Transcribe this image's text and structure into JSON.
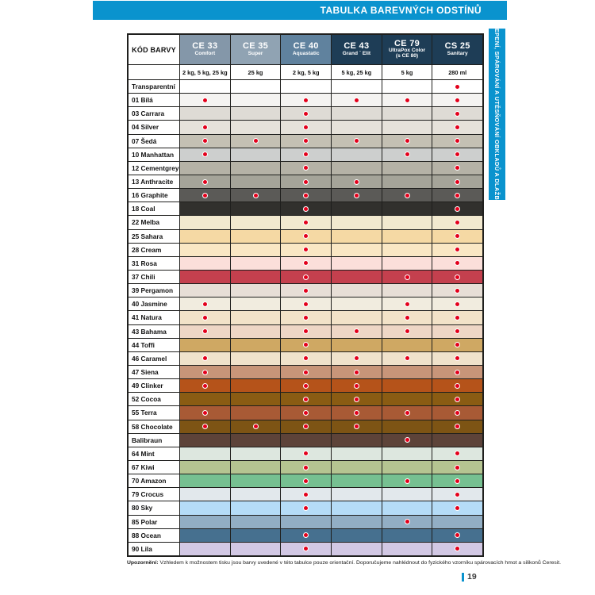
{
  "page": {
    "top_banner": "TABULKA BAREVNÝCH ODSTÍNŮ",
    "side_tab": "LEPENÍ, SPÁROVÁNÍ A UTĚSŇOVÁNÍ OBKLADŮ A DLAŽBY",
    "page_number": "19",
    "footnote_label": "Upozornění:",
    "footnote_text": " Vzhledem k možnostem tisku jsou barvy uvedené v této tabulce pouze orientační. Doporučujeme nahlédnout do fyzického vzorníku spárovacích hmot a silikonů Ceresit.",
    "accent_blue": "#0a93ce"
  },
  "table": {
    "code_header": "KÓD BARVY",
    "dot_color": "#e3001b",
    "columns": [
      {
        "code": "CE 33",
        "name": "Comfort",
        "name2": "",
        "pack": "2 kg, 5 kg, 25 kg",
        "color": "#8497a9"
      },
      {
        "code": "CE 35",
        "name": "Super",
        "name2": "",
        "pack": "25 kg",
        "color": "#90a3b3"
      },
      {
        "code": "CE 40",
        "name": "Aquastatic",
        "name2": "",
        "pack": "2 kg, 5 kg",
        "color": "#60829e"
      },
      {
        "code": "CE 43",
        "name": "Grand ´ Elit",
        "name2": "",
        "pack": "5 kg, 25 kg",
        "color": "#1e3d56"
      },
      {
        "code": "CE 79",
        "name": "UltraPox Color",
        "name2": "(s CE 80)",
        "pack": "5 kg",
        "color": "#1e3d56"
      },
      {
        "code": "CS 25",
        "name": "Sanitary",
        "name2": "",
        "pack": "280 ml",
        "color": "#1e3d56"
      }
    ],
    "rows": [
      {
        "label": "Transparentní",
        "color": "#ffffff",
        "dots": [
          0,
          0,
          0,
          0,
          0,
          1
        ]
      },
      {
        "label": "01 Bílá",
        "color": "#f4f3f1",
        "dots": [
          1,
          0,
          1,
          1,
          1,
          1
        ]
      },
      {
        "label": "03 Carrara",
        "color": "#dedbd5",
        "dots": [
          0,
          0,
          1,
          0,
          0,
          1
        ]
      },
      {
        "label": "04 Silver",
        "color": "#e6e2da",
        "dots": [
          1,
          0,
          1,
          0,
          0,
          1
        ]
      },
      {
        "label": "07 Šedá",
        "color": "#c4c0b3",
        "dots": [
          1,
          1,
          1,
          1,
          1,
          1
        ]
      },
      {
        "label": "10 Manhattan",
        "color": "#cdcfce",
        "dots": [
          1,
          0,
          1,
          0,
          1,
          1
        ]
      },
      {
        "label": "12 Cementgrey",
        "color": "#b5b2a6",
        "dots": [
          0,
          0,
          1,
          0,
          0,
          1
        ]
      },
      {
        "label": "13 Anthracite",
        "color": "#a5a499",
        "dots": [
          1,
          0,
          1,
          1,
          0,
          1
        ]
      },
      {
        "label": "16 Graphite",
        "color": "#5b5a57",
        "dots": [
          1,
          1,
          1,
          1,
          1,
          1
        ]
      },
      {
        "label": "18 Coal",
        "color": "#31302d",
        "dots": [
          0,
          0,
          1,
          0,
          0,
          1
        ]
      },
      {
        "label": "22 Melba",
        "color": "#f2e9cf",
        "dots": [
          0,
          0,
          1,
          0,
          0,
          1
        ]
      },
      {
        "label": "25 Sahara",
        "color": "#f5d9a4",
        "dots": [
          0,
          0,
          1,
          0,
          0,
          1
        ]
      },
      {
        "label": "28 Cream",
        "color": "#f9e7c4",
        "dots": [
          0,
          0,
          1,
          0,
          0,
          1
        ]
      },
      {
        "label": "31 Rosa",
        "color": "#fbdfda",
        "dots": [
          0,
          0,
          1,
          0,
          0,
          1
        ]
      },
      {
        "label": "37 Chili",
        "color": "#c4404e",
        "dots": [
          0,
          0,
          1,
          0,
          1,
          1
        ]
      },
      {
        "label": "39 Pergamon",
        "color": "#e7ded6",
        "dots": [
          0,
          0,
          1,
          0,
          0,
          1
        ]
      },
      {
        "label": "40 Jasmine",
        "color": "#f1ecdf",
        "dots": [
          1,
          0,
          1,
          0,
          1,
          1
        ]
      },
      {
        "label": "41 Natura",
        "color": "#f2e2c8",
        "dots": [
          1,
          0,
          1,
          0,
          1,
          1
        ]
      },
      {
        "label": "43 Bahama",
        "color": "#eed6c5",
        "dots": [
          1,
          0,
          1,
          1,
          1,
          1
        ]
      },
      {
        "label": "44 Toffi",
        "color": "#cfa863",
        "dots": [
          0,
          0,
          1,
          0,
          0,
          1
        ]
      },
      {
        "label": "46 Caramel",
        "color": "#f0e2cb",
        "dots": [
          1,
          0,
          1,
          1,
          1,
          1
        ]
      },
      {
        "label": "47 Siena",
        "color": "#c89579",
        "dots": [
          1,
          0,
          1,
          1,
          0,
          1
        ]
      },
      {
        "label": "49 Clinker",
        "color": "#b5531a",
        "dots": [
          1,
          0,
          1,
          1,
          0,
          1
        ]
      },
      {
        "label": "52 Cocoa",
        "color": "#8a5c13",
        "dots": [
          0,
          0,
          1,
          1,
          0,
          1
        ]
      },
      {
        "label": "55 Terra",
        "color": "#a85a35",
        "dots": [
          1,
          0,
          1,
          1,
          1,
          1
        ]
      },
      {
        "label": "58 Chocolate",
        "color": "#7d5414",
        "dots": [
          1,
          1,
          1,
          1,
          0,
          1
        ]
      },
      {
        "label": "Balibraun",
        "color": "#5d4339",
        "dots": [
          0,
          0,
          0,
          0,
          1,
          0
        ]
      },
      {
        "label": "64 Mint",
        "color": "#dde7df",
        "dots": [
          0,
          0,
          1,
          0,
          0,
          1
        ]
      },
      {
        "label": "67 Kiwi",
        "color": "#b5c491",
        "dots": [
          0,
          0,
          1,
          0,
          0,
          1
        ]
      },
      {
        "label": "70 Amazon",
        "color": "#76c091",
        "dots": [
          0,
          0,
          1,
          0,
          1,
          1
        ]
      },
      {
        "label": "79 Crocus",
        "color": "#e2e8ec",
        "dots": [
          0,
          0,
          1,
          0,
          0,
          1
        ]
      },
      {
        "label": "80 Sky",
        "color": "#b5dcf7",
        "dots": [
          0,
          0,
          1,
          0,
          0,
          1
        ]
      },
      {
        "label": "85 Polar",
        "color": "#92aec4",
        "dots": [
          0,
          0,
          0,
          0,
          1,
          0
        ]
      },
      {
        "label": "88 Ocean",
        "color": "#46708f",
        "dots": [
          0,
          0,
          1,
          0,
          0,
          1
        ]
      },
      {
        "label": "90 Lila",
        "color": "#d2c8e4",
        "dots": [
          0,
          0,
          1,
          0,
          0,
          1
        ]
      }
    ]
  }
}
